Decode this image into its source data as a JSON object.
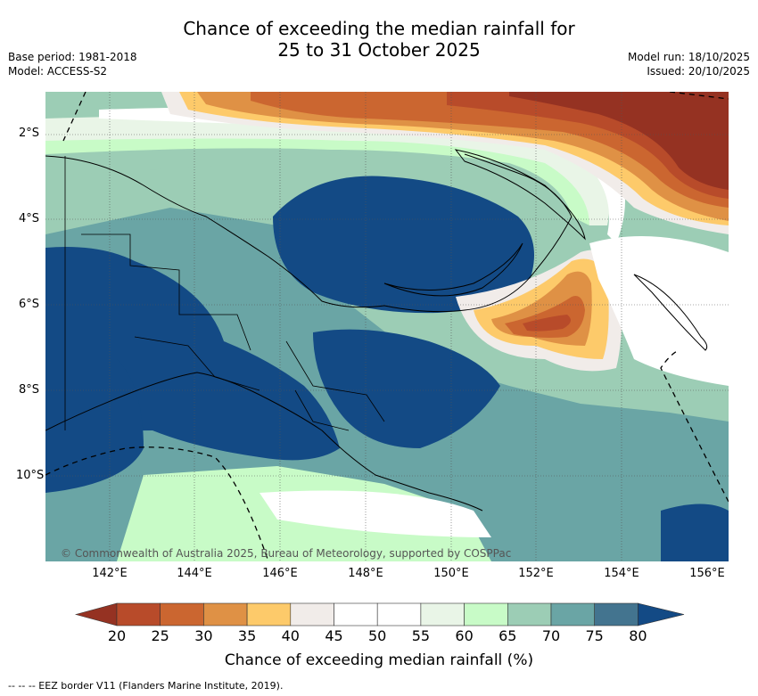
{
  "title_line1": "Chance of exceeding the median rainfall for",
  "title_line2": "25 to 31 October 2025",
  "meta_left": [
    "Base period: 1981-2018",
    "Model: ACCESS-S2"
  ],
  "meta_right": [
    "Model run: 18/10/2025",
    "Issued: 20/10/2025"
  ],
  "map": {
    "lat_ticks": [
      "2°S",
      "4°S",
      "6°S",
      "8°S",
      "10°S"
    ],
    "lon_ticks": [
      "142°E",
      "144°E",
      "146°E",
      "148°E",
      "150°E",
      "152°E",
      "154°E",
      "156°E"
    ],
    "copyright": "© Commonwealth of Australia 2025, Bureau of Meteorology, supported by COSPPac",
    "colors": {
      "c20": "#953222",
      "c25": "#b84b2a",
      "c30": "#cb6630",
      "c35": "#df9145",
      "c40": "#fdca6a",
      "c45": "#f1ece9",
      "c50": "#ffffff",
      "c55": "#ffffff",
      "c60": "#e9f5e7",
      "c65": "#c8fbc7",
      "c70": "#9ccdb5",
      "c75": "#6aa5a5",
      "c80": "#43748f",
      "c85": "#134a85"
    }
  },
  "colorbar": {
    "labels": [
      "20",
      "25",
      "30",
      "35",
      "40",
      "45",
      "50",
      "55",
      "60",
      "65",
      "70",
      "75",
      "80"
    ],
    "colors": [
      "#953222",
      "#b84b2a",
      "#cb6630",
      "#df9145",
      "#fdca6a",
      "#f1ece9",
      "#ffffff",
      "#ffffff",
      "#e9f5e7",
      "#c8fbc7",
      "#9ccdb5",
      "#6aa5a5",
      "#43748f",
      "#134a85"
    ],
    "title": "Chance of exceeding median rainfall (%)"
  },
  "footer": "--  --  -- EEZ border V11 (Flanders Marine Institute, 2019)."
}
